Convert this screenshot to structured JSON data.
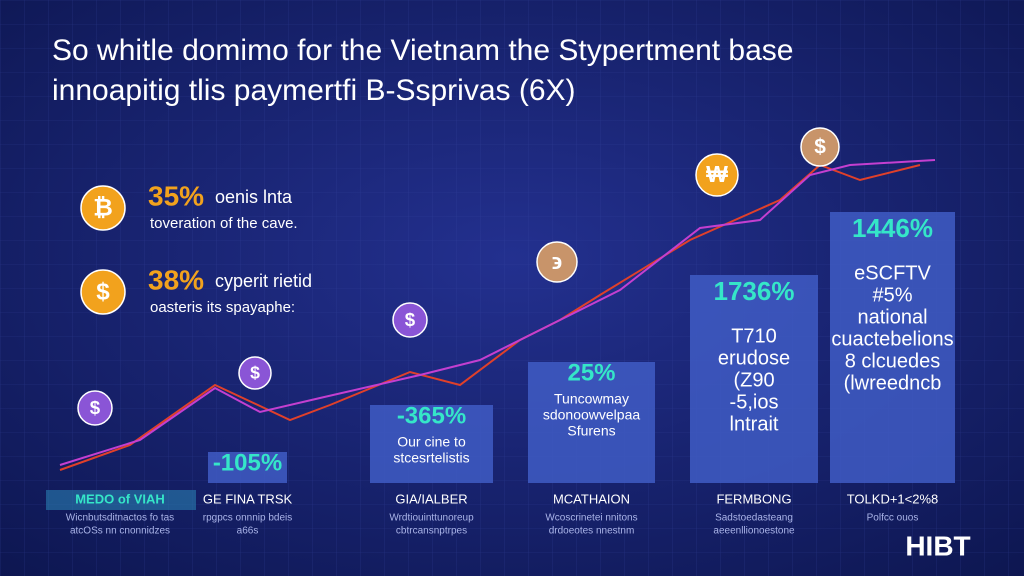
{
  "header": {
    "title_lines": [
      "So whitle domimo for the Vietnam the Stypertment base",
      "innoapitig tlis paymertfi B-Ssprivas (6X)"
    ]
  },
  "callouts": [
    {
      "symbol": "₿",
      "value": "35%",
      "text": "oenis lnta",
      "sub": "toveration of the cave."
    },
    {
      "symbol": "$",
      "value": "38%",
      "text": "cyperit rietid",
      "sub": "oasteris its spayaphe:"
    }
  ],
  "coins": [
    {
      "symbol": "$"
    },
    {
      "symbol": "$"
    },
    {
      "symbol": "$"
    },
    {
      "symbol": "϶"
    },
    {
      "symbol": "₩"
    },
    {
      "symbol": "$"
    }
  ],
  "bars": [
    {
      "label": "-105%",
      "lines": [],
      "heading": "GE FINA TRSK",
      "caption": [
        "rpgpcs onnnip bdeis",
        "a66s"
      ]
    },
    {
      "label": "-365%",
      "lines": [
        "Our cine to",
        "stcesrtelistis"
      ],
      "heading": "GIA/IALBER",
      "caption": [
        "Wrdtiouinttunoreup",
        "cbtrcansnptrpes"
      ]
    },
    {
      "label": "25%",
      "lines": [
        "Tuncowmay",
        "sdonoowvelpaa",
        "Sfurens"
      ],
      "heading": "MCATHAION",
      "caption": [
        "Wcoscrinetei nnitons",
        "drdoeotes nnestnm"
      ]
    },
    {
      "label": "1736%",
      "lines": [
        "T710",
        "erudose",
        "(Z90",
        "-5,ios",
        "lntrait"
      ],
      "heading": "FERMBONG",
      "caption": [
        "Sadstoedasteang",
        "aeeenllionoestone"
      ]
    },
    {
      "label": "1446%",
      "lines": [
        "eSCFTV",
        "#5%",
        "national",
        "cuactebelions",
        "8 clcuedes",
        "(lwreedncb"
      ],
      "heading": "TOLKD+1<2%8",
      "caption": [
        "Polfcc ouos"
      ]
    }
  ],
  "footer": {
    "left_heading": "MEDO of VIAH",
    "left_caption": [
      "Wicnbutsditnactos fo tas",
      "atcOSs nn cnonnidzes"
    ],
    "logo": "HIBT"
  }
}
